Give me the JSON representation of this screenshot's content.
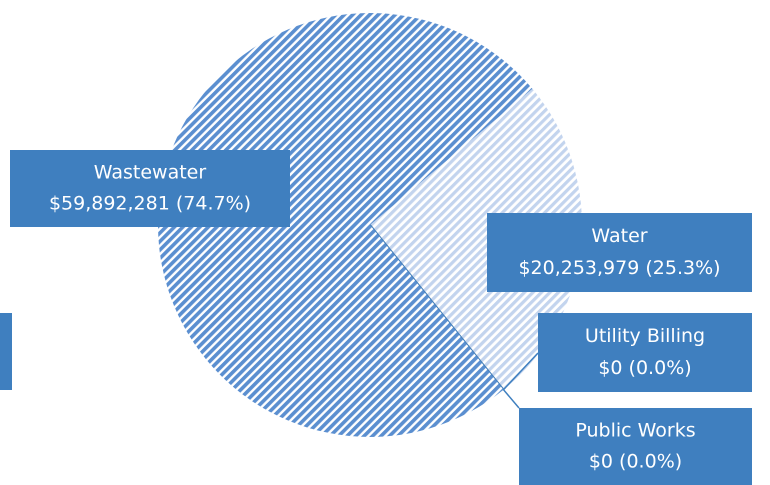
{
  "chart_data": {
    "type": "pie",
    "categories": [
      "Water",
      "Utility Billing",
      "Public Works",
      "Wastewater"
    ],
    "values": [
      20253979,
      0,
      0,
      59892281
    ],
    "value_labels": [
      "$20,253,979 (25.3%)",
      "$0 (0.0%)",
      "$0 (0.0%)",
      "$59,892,281 (74.7%)"
    ],
    "colors": [
      "#c3d4ee",
      "#f2c894",
      "#3f7fbf",
      "#5b8fd0"
    ]
  }
}
